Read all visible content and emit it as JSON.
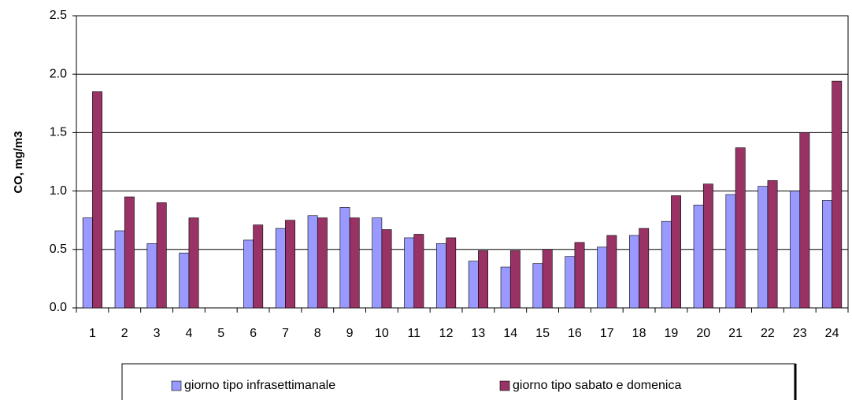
{
  "chart_data": {
    "type": "bar",
    "ylabel": "CO, mg/m3",
    "categories": [
      "1",
      "2",
      "3",
      "4",
      "5",
      "6",
      "7",
      "8",
      "9",
      "10",
      "11",
      "12",
      "13",
      "14",
      "15",
      "16",
      "17",
      "18",
      "19",
      "20",
      "21",
      "22",
      "23",
      "24"
    ],
    "series": [
      {
        "name": "giorno tipo infrasettimanale",
        "color": "#9999ff",
        "values": [
          0.77,
          0.66,
          0.55,
          0.47,
          null,
          0.58,
          0.68,
          0.79,
          0.86,
          0.77,
          0.6,
          0.55,
          0.4,
          0.35,
          0.38,
          0.44,
          0.52,
          0.62,
          0.74,
          0.88,
          0.97,
          1.04,
          1.0,
          0.92
        ]
      },
      {
        "name": "giorno tipo sabato e domenica",
        "color": "#993366",
        "values": [
          1.85,
          0.95,
          0.9,
          0.77,
          null,
          0.71,
          0.75,
          0.77,
          0.77,
          0.67,
          0.63,
          0.6,
          0.49,
          0.49,
          0.5,
          0.56,
          0.62,
          0.68,
          0.96,
          1.06,
          1.37,
          1.09,
          1.5,
          1.94
        ]
      }
    ],
    "ylim": [
      0,
      2.5
    ],
    "yticks": [
      {
        "value": 0,
        "label": "0.0"
      },
      0.5,
      {
        "value": 1,
        "label": "1.0"
      },
      1.5,
      {
        "value": 2,
        "label": "2.0"
      },
      2.5
    ],
    "grid": true,
    "legend": "bottom"
  }
}
